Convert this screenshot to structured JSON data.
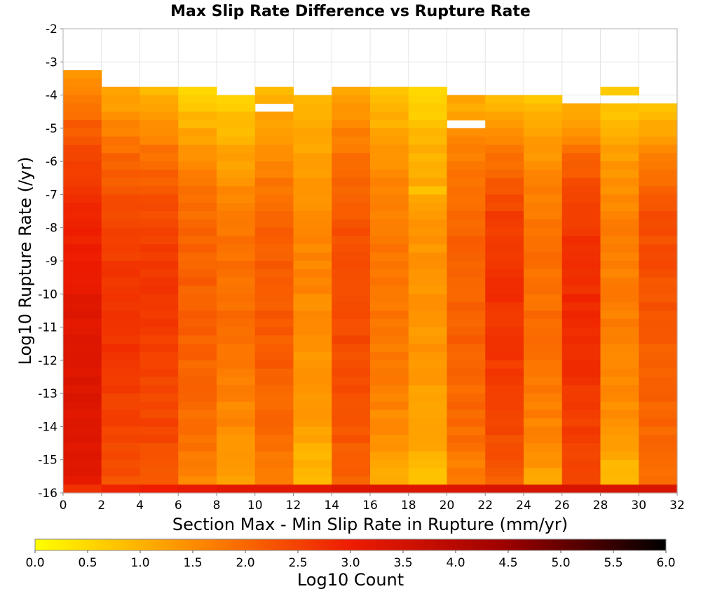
{
  "chart_data": {
    "type": "heatmap",
    "title": "Max Slip Rate Difference vs Rupture Rate",
    "xlabel": "Section Max - Min Slip Rate in Rupture (mm/yr)",
    "ylabel": "Log10 Rupture Rate (/yr)",
    "xlim": [
      0,
      32
    ],
    "ylim": [
      -16,
      -2
    ],
    "x_ticks": [
      "0",
      "2",
      "4",
      "6",
      "8",
      "10",
      "12",
      "14",
      "16",
      "18",
      "20",
      "22",
      "24",
      "26",
      "28",
      "30",
      "32"
    ],
    "y_ticks": [
      "-2",
      "-3",
      "-4",
      "-5",
      "-6",
      "-7",
      "-8",
      "-9",
      "-10",
      "-11",
      "-12",
      "-13",
      "-14",
      "-15",
      "-16"
    ],
    "grid": true,
    "bin_width_x": 2,
    "bin_height_y": 0.25,
    "colorbar": {
      "label": "Log10 Count",
      "range": [
        0.0,
        6.0
      ],
      "ticks": [
        "0.0",
        "0.5",
        "1.0",
        "1.5",
        "2.0",
        "2.5",
        "3.0",
        "3.5",
        "4.0",
        "4.5",
        "5.0",
        "5.5",
        "6.0"
      ],
      "colors": [
        "#ffff00",
        "#ff8c00",
        "#ee1c00",
        "#9b0000",
        "#000000"
      ]
    },
    "columns": [
      {
        "x_start": 0,
        "y_top": -3.25,
        "profile": [
          1.5,
          2.2,
          2.7,
          3.0,
          3.2,
          3.3,
          3.3,
          3.2
        ],
        "bottom_value": 2.7
      },
      {
        "x_start": 2,
        "y_top": -3.75,
        "profile": [
          1.1,
          1.9,
          2.4,
          2.6,
          2.7,
          2.6,
          2.5,
          2.3
        ],
        "bottom_value": 2.9
      },
      {
        "x_start": 4,
        "y_top": -3.75,
        "profile": [
          1.0,
          1.8,
          2.3,
          2.6,
          2.6,
          2.5,
          2.4,
          2.2
        ],
        "bottom_value": 3.0
      },
      {
        "x_start": 6,
        "y_top": -3.75,
        "profile": [
          0.5,
          1.4,
          1.9,
          2.1,
          2.1,
          2.0,
          1.9,
          1.5
        ],
        "bottom_value": 3.1
      },
      {
        "x_start": 8,
        "y_top": -4.0,
        "profile": [
          0.6,
          1.2,
          1.7,
          1.9,
          1.9,
          1.7,
          1.5,
          1.2
        ],
        "bottom_value": 3.2
      },
      {
        "x_start": 10,
        "y_top": -3.75,
        "profile": [
          0.9,
          1.5,
          1.9,
          2.2,
          2.2,
          2.1,
          1.9,
          1.7
        ],
        "bottom_value": 3.2
      },
      {
        "x_start": 12,
        "y_top": -4.0,
        "profile": [
          0.9,
          1.2,
          1.5,
          1.6,
          1.5,
          1.4,
          1.2,
          0.8
        ],
        "bottom_value": 3.2
      },
      {
        "x_start": 14,
        "y_top": -3.75,
        "profile": [
          1.2,
          1.8,
          2.2,
          2.4,
          2.4,
          2.3,
          2.2,
          2.0
        ],
        "bottom_value": 3.3
      },
      {
        "x_start": 16,
        "y_top": -3.75,
        "profile": [
          0.8,
          1.3,
          1.7,
          1.8,
          1.8,
          1.7,
          1.5,
          0.9
        ],
        "bottom_value": 3.3
      },
      {
        "x_start": 18,
        "y_top": -3.75,
        "profile": [
          0.5,
          1.0,
          1.3,
          1.4,
          1.4,
          1.3,
          1.2,
          0.8
        ],
        "bottom_value": 3.3
      },
      {
        "x_start": 20,
        "y_top": -4.0,
        "profile": [
          1.1,
          1.7,
          2.0,
          2.1,
          2.1,
          2.0,
          1.9,
          1.6
        ],
        "bottom_value": 3.3
      },
      {
        "x_start": 22,
        "y_top": -4.0,
        "profile": [
          0.8,
          1.8,
          2.5,
          2.7,
          2.7,
          2.6,
          2.4,
          2.0
        ],
        "bottom_value": 3.4
      },
      {
        "x_start": 24,
        "y_top": -4.0,
        "profile": [
          0.8,
          1.4,
          1.8,
          1.9,
          1.9,
          1.8,
          1.6,
          1.1
        ],
        "bottom_value": 3.4
      },
      {
        "x_start": 26,
        "y_top": -4.25,
        "profile": [
          1.0,
          2.1,
          2.6,
          2.8,
          2.8,
          2.7,
          2.5,
          2.3
        ],
        "bottom_value": 3.4
      },
      {
        "x_start": 28,
        "y_top": -3.75,
        "profile": [
          0.6,
          1.2,
          1.6,
          1.7,
          1.7,
          1.6,
          1.4,
          0.7
        ],
        "bottom_value": 3.4
      },
      {
        "x_start": 30,
        "y_top": -4.25,
        "profile": [
          0.8,
          1.7,
          2.3,
          2.3,
          2.2,
          2.1,
          2.0,
          1.9
        ],
        "bottom_value": 3.4
      }
    ],
    "gaps": [
      {
        "x_start": 10,
        "y": -4.25
      },
      {
        "x_start": 20,
        "y": -4.75
      },
      {
        "x_start": 28,
        "y": -4.0
      }
    ],
    "accents": [
      {
        "x_start": 18,
        "y": -6.75,
        "value": 0.8
      }
    ]
  }
}
